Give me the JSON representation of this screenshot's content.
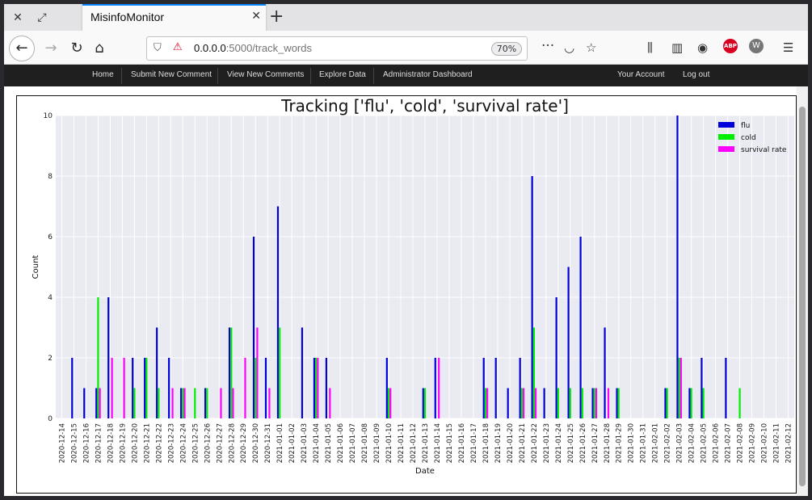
{
  "browser": {
    "tab_title": "MisinfoMonitor",
    "url_host": "0.0.0.0",
    "url_path": ":5000/track_words",
    "zoom": "70%"
  },
  "nav": {
    "left": [
      "Home",
      "Submit New Comment",
      "View New Comments",
      "Explore Data",
      "Administrator Dashboard"
    ],
    "right": [
      "Your Account",
      "Log out"
    ]
  },
  "colors": {
    "flu": "#0000dd",
    "cold": "#00ee00",
    "survival rate": "#ff00ff",
    "plot_bg": "#eaeaf2"
  },
  "chart_data": {
    "type": "bar",
    "title": "Tracking ['flu', 'cold', 'survival rate']",
    "xlabel": "Date",
    "ylabel": "Count",
    "ylim": [
      0,
      10
    ],
    "yticks": [
      0,
      2,
      4,
      6,
      8,
      10
    ],
    "legend": "top-right",
    "grid": true,
    "categories": [
      "2020-12-14",
      "2020-12-15",
      "2020-12-16",
      "2020-12-17",
      "2020-12-18",
      "2020-12-19",
      "2020-12-20",
      "2020-12-21",
      "2020-12-22",
      "2020-12-23",
      "2020-12-24",
      "2020-12-25",
      "2020-12-26",
      "2020-12-27",
      "2020-12-28",
      "2020-12-29",
      "2020-12-30",
      "2020-12-31",
      "2021-01-01",
      "2021-01-02",
      "2021-01-03",
      "2021-01-04",
      "2021-01-05",
      "2021-01-06",
      "2021-01-07",
      "2021-01-08",
      "2021-01-09",
      "2021-01-10",
      "2021-01-11",
      "2021-01-12",
      "2021-01-13",
      "2021-01-14",
      "2021-01-15",
      "2021-01-16",
      "2021-01-17",
      "2021-01-18",
      "2021-01-19",
      "2021-01-20",
      "2021-01-21",
      "2021-01-22",
      "2021-01-23",
      "2021-01-24",
      "2021-01-25",
      "2021-01-26",
      "2021-01-27",
      "2021-01-28",
      "2021-01-29",
      "2021-01-30",
      "2021-01-31",
      "2021-02-01",
      "2021-02-02",
      "2021-02-03",
      "2021-02-04",
      "2021-02-05",
      "2021-02-06",
      "2021-02-07",
      "2021-02-08",
      "2021-02-09",
      "2021-02-10",
      "2021-02-11",
      "2021-02-12"
    ],
    "series": [
      {
        "name": "flu",
        "values": [
          0,
          2,
          1,
          1,
          4,
          0,
          2,
          2,
          3,
          2,
          1,
          0,
          1,
          0,
          3,
          0,
          6,
          2,
          7,
          0,
          3,
          2,
          2,
          0,
          0,
          0,
          0,
          2,
          0,
          0,
          1,
          2,
          0,
          0,
          0,
          2,
          2,
          1,
          2,
          8,
          1,
          4,
          5,
          6,
          1,
          3,
          1,
          0,
          0,
          0,
          1,
          10,
          1,
          2,
          0,
          2,
          0,
          0,
          0,
          0,
          0
        ]
      },
      {
        "name": "cold",
        "values": [
          0,
          0,
          0,
          4,
          0,
          0,
          1,
          2,
          1,
          0,
          1,
          1,
          1,
          0,
          3,
          0,
          2,
          0,
          3,
          0,
          0,
          2,
          0,
          0,
          0,
          0,
          0,
          1,
          0,
          0,
          1,
          0,
          0,
          0,
          0,
          1,
          0,
          0,
          1,
          3,
          0,
          1,
          1,
          1,
          1,
          0,
          1,
          0,
          0,
          0,
          1,
          2,
          1,
          1,
          0,
          0,
          1,
          0,
          0,
          0,
          0
        ]
      },
      {
        "name": "survival rate",
        "values": [
          0,
          0,
          0,
          1,
          2,
          2,
          0,
          0,
          0,
          1,
          1,
          0,
          0,
          1,
          1,
          2,
          3,
          1,
          0,
          0,
          0,
          2,
          1,
          0,
          0,
          0,
          0,
          1,
          0,
          0,
          0,
          2,
          0,
          0,
          0,
          1,
          0,
          0,
          1,
          1,
          0,
          0,
          0,
          0,
          1,
          1,
          0,
          0,
          0,
          0,
          0,
          2,
          0,
          0,
          0,
          0,
          0,
          0,
          0,
          0,
          0
        ]
      }
    ]
  }
}
